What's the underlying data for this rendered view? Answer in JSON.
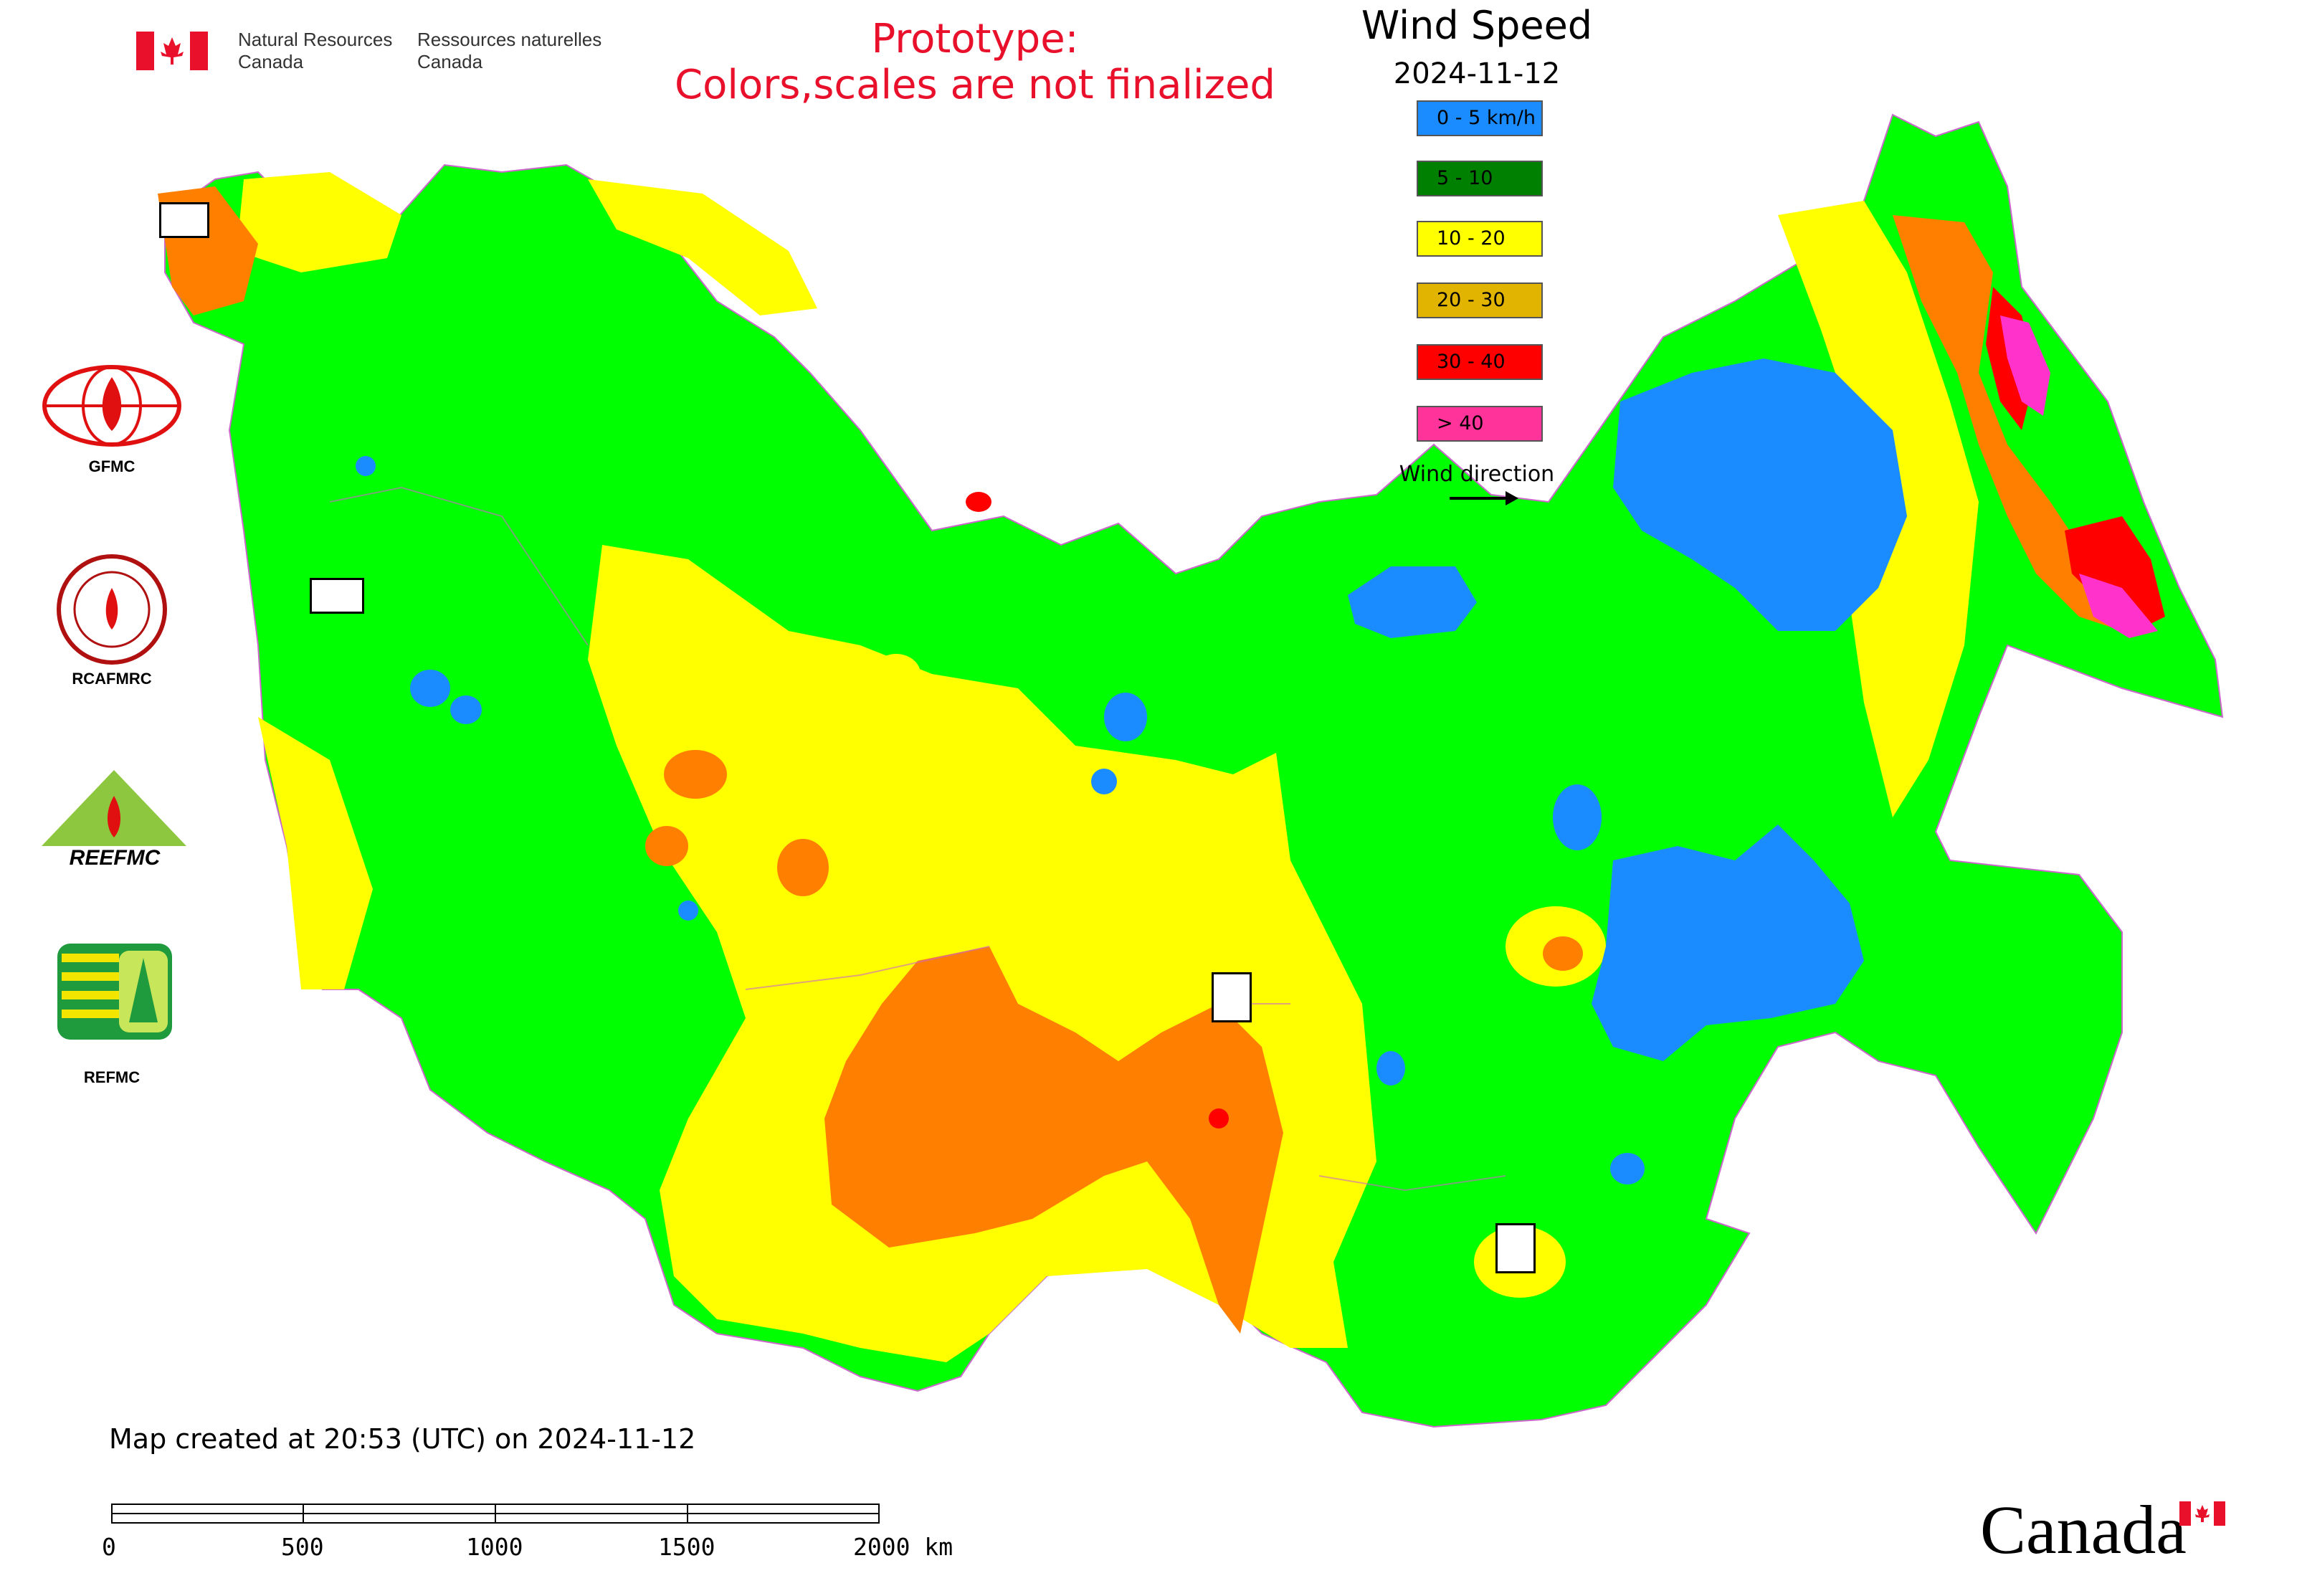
{
  "header": {
    "org_en": "Natural Resources\nCanada",
    "org_fr": "Ressources naturelles\nCanada",
    "prototype_line1": "Prototype:",
    "prototype_line2": "Colors,scales are not finalized"
  },
  "legend": {
    "title": "Wind Speed",
    "date": "2024-11-12",
    "classes": [
      {
        "label": "0 - 5 km/h",
        "color": "#1a8cff"
      },
      {
        "label": "5 - 10",
        "color": "#008000"
      },
      {
        "label": "10 - 20",
        "color": "#ffff00"
      },
      {
        "label": "20 - 30",
        "color": "#e0b400"
      },
      {
        "label": "30 - 40",
        "color": "#ff0000"
      },
      {
        "label": "> 40",
        "color": "#ff3399"
      }
    ],
    "direction_label": "Wind direction"
  },
  "logos": [
    {
      "label": "GFMC",
      "icon": "gfmc-logo-icon"
    },
    {
      "label": "RCAFMRC",
      "icon": "rcafmrc-logo-icon"
    },
    {
      "label": "REEFMC",
      "icon": "reefmc-logo-icon"
    },
    {
      "label": "REFMC",
      "icon": "refmc-logo-icon"
    }
  ],
  "map_colors": {
    "calm": "#1a8cff",
    "light": "#00ff00",
    "moderate": "#ffff00",
    "fresh": "#ff8000",
    "strong": "#ff0000",
    "extreme": "#ff33cc",
    "border": "#cc66cc"
  },
  "footer": {
    "created": "Map created at 20:53 (UTC) on 2024-11-12",
    "scale_ticks": [
      "0",
      "500",
      "1000",
      "1500",
      "2000 km"
    ],
    "wordmark": "Canada"
  }
}
